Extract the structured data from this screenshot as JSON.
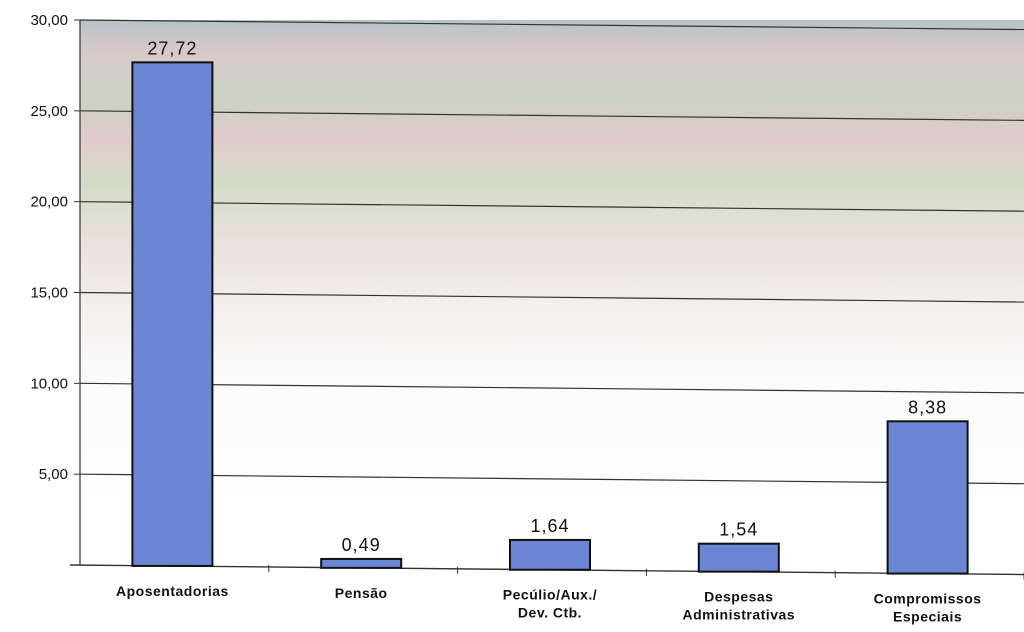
{
  "chart_data": {
    "type": "bar",
    "categories": [
      [
        "Aposentadorias"
      ],
      [
        "Pensão"
      ],
      [
        "Pecúlio/Aux./",
        "Dev. Ctb."
      ],
      [
        "Despesas",
        "Administrativas"
      ],
      [
        "Compromissos",
        "Especiais"
      ]
    ],
    "values": [
      27.72,
      0.49,
      1.64,
      1.54,
      8.38
    ],
    "value_labels": [
      "27,72",
      "0,49",
      "1,64",
      "1,54",
      "8,38"
    ],
    "ylim": [
      0,
      30
    ],
    "yticks": [
      5,
      10,
      15,
      20,
      25,
      30
    ],
    "ytick_labels": [
      "5,00",
      "10,00",
      "15,00",
      "20,00",
      "25,00",
      "30,00"
    ],
    "grid": true,
    "legend": "none",
    "bar_color": "#6a86d4",
    "bar_edge_color": "#111111"
  }
}
